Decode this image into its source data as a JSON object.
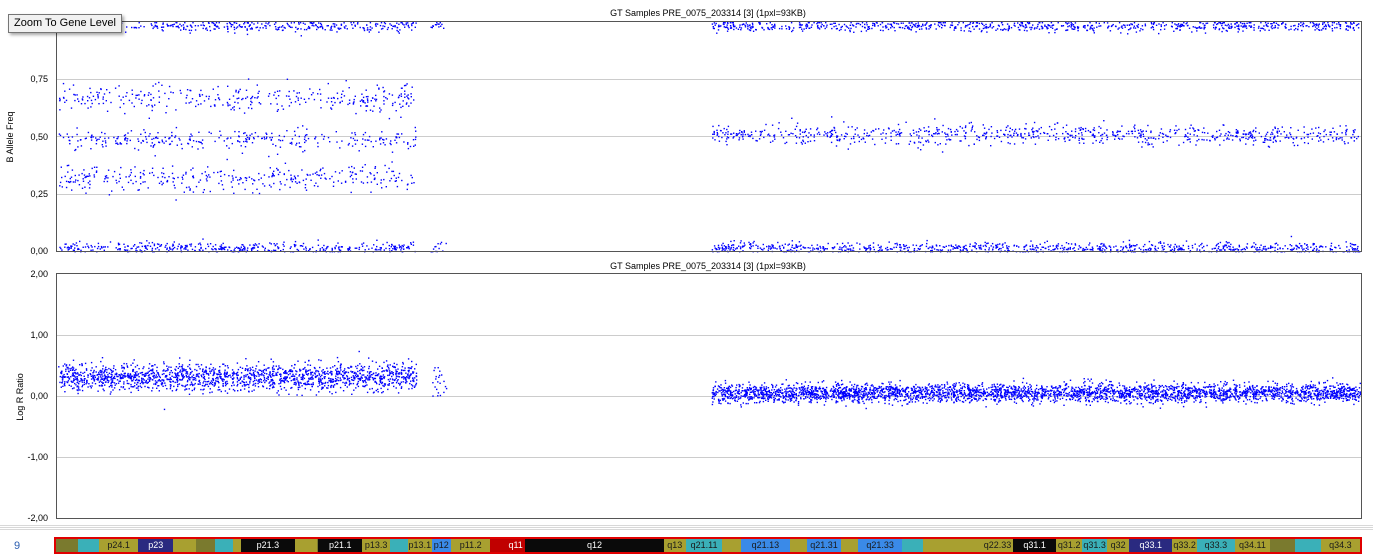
{
  "tooltip": {
    "label": "Zoom To Gene Level"
  },
  "chromosome": {
    "number": "9"
  },
  "colors": {
    "points": "#0000ff",
    "grid": "#cccccc",
    "ideogram_border": "#e00000"
  },
  "chart_data": [
    {
      "type": "scatter",
      "title": "GT Samples PRE_0075_203314 [3]  (1pxl=93KB)",
      "ylabel": "B Allele Freq",
      "ylim": [
        0,
        1
      ],
      "yticks": [
        "0,00",
        "0,25",
        "0,50",
        "0,75"
      ],
      "grid": true,
      "x_range_fraction": [
        0,
        1
      ],
      "clusters": [
        {
          "x": [
            0.0,
            0.275
          ],
          "y": 0.985,
          "spread": 0.012,
          "count": 380
        },
        {
          "x": [
            0.0,
            0.275
          ],
          "y": 0.67,
          "spread": 0.03,
          "count": 340
        },
        {
          "x": [
            0.0,
            0.275
          ],
          "y": 0.49,
          "spread": 0.022,
          "count": 300
        },
        {
          "x": [
            0.0,
            0.275
          ],
          "y": 0.32,
          "spread": 0.03,
          "count": 340
        },
        {
          "x": [
            0.0,
            0.275
          ],
          "y": 0.015,
          "spread": 0.012,
          "count": 420
        },
        {
          "x": [
            0.286,
            0.298
          ],
          "y": 0.985,
          "spread": 0.012,
          "count": 14
        },
        {
          "x": [
            0.286,
            0.298
          ],
          "y": 0.015,
          "spread": 0.015,
          "count": 14
        },
        {
          "x": [
            0.502,
            1.0
          ],
          "y": 0.985,
          "spread": 0.012,
          "count": 820
        },
        {
          "x": [
            0.502,
            1.0
          ],
          "y": 0.51,
          "spread": 0.022,
          "count": 820
        },
        {
          "x": [
            0.502,
            1.0
          ],
          "y": 0.015,
          "spread": 0.012,
          "count": 880
        }
      ]
    },
    {
      "type": "scatter",
      "title": "GT Samples PRE_0075_203314 [3]  (1pxl=93KB)",
      "ylabel": "Log R Ratio",
      "ylim": [
        -2,
        2
      ],
      "yticks": [
        "-2,00",
        "-1,00",
        "0,00",
        "1,00",
        "2,00"
      ],
      "grid": true,
      "clusters": [
        {
          "x": [
            0.0,
            0.275
          ],
          "y": 0.32,
          "spread": 0.11,
          "count": 1700
        },
        {
          "x": [
            0.286,
            0.298
          ],
          "y": 0.22,
          "spread": 0.15,
          "count": 22
        },
        {
          "x": [
            0.502,
            1.0
          ],
          "y": 0.06,
          "spread": 0.075,
          "count": 3400
        }
      ]
    }
  ],
  "ideogram": {
    "bands": [
      {
        "label": "",
        "start": 0.0,
        "end": 0.017,
        "color": "#7a7a2e"
      },
      {
        "label": "",
        "start": 0.017,
        "end": 0.033,
        "color": "#3ab0b8"
      },
      {
        "label": "p24.1",
        "start": 0.033,
        "end": 0.063,
        "color": "#a8a030"
      },
      {
        "label": "p23",
        "start": 0.063,
        "end": 0.09,
        "color": "#2a2a80"
      },
      {
        "label": "",
        "start": 0.09,
        "end": 0.107,
        "color": "#a8a030"
      },
      {
        "label": "",
        "start": 0.107,
        "end": 0.122,
        "color": "#7a7a2e"
      },
      {
        "label": "",
        "start": 0.122,
        "end": 0.136,
        "color": "#3ab0b8"
      },
      {
        "label": "",
        "start": 0.136,
        "end": 0.142,
        "color": "#a8a030"
      },
      {
        "label": "p21.3",
        "start": 0.142,
        "end": 0.183,
        "color": "#0a0a0a"
      },
      {
        "label": "",
        "start": 0.183,
        "end": 0.2,
        "color": "#a8a030"
      },
      {
        "label": "",
        "start": 0.2,
        "end": 0.201,
        "color": "#7a7a2e"
      },
      {
        "label": "p21.1",
        "start": 0.201,
        "end": 0.235,
        "color": "#0a0a0a"
      },
      {
        "label": "p13.3",
        "start": 0.235,
        "end": 0.256,
        "color": "#a8a030"
      },
      {
        "label": "",
        "start": 0.256,
        "end": 0.27,
        "color": "#3ab0b8"
      },
      {
        "label": "p13.1",
        "start": 0.27,
        "end": 0.288,
        "color": "#a8a030"
      },
      {
        "label": "p12",
        "start": 0.288,
        "end": 0.303,
        "color": "#3a8ae8"
      },
      {
        "label": "p11.2",
        "start": 0.303,
        "end": 0.333,
        "color": "#a8a030"
      },
      {
        "label": "",
        "start": 0.333,
        "end": 0.345,
        "color": "#c00000"
      },
      {
        "label": "q11",
        "start": 0.345,
        "end": 0.36,
        "color": "#c00000"
      },
      {
        "label": "q12",
        "start": 0.36,
        "end": 0.466,
        "color": "#0a0a0a"
      },
      {
        "label": "q13",
        "start": 0.466,
        "end": 0.483,
        "color": "#a8a030"
      },
      {
        "label": "q21.11",
        "start": 0.483,
        "end": 0.511,
        "color": "#3ab0b8"
      },
      {
        "label": "",
        "start": 0.511,
        "end": 0.525,
        "color": "#a8a030"
      },
      {
        "label": "q21.13",
        "start": 0.525,
        "end": 0.563,
        "color": "#3a8ae8"
      },
      {
        "label": "",
        "start": 0.563,
        "end": 0.576,
        "color": "#a8a030"
      },
      {
        "label": "q21.31",
        "start": 0.576,
        "end": 0.602,
        "color": "#3a8ae8"
      },
      {
        "label": "",
        "start": 0.602,
        "end": 0.615,
        "color": "#a8a030"
      },
      {
        "label": "q21.33",
        "start": 0.615,
        "end": 0.649,
        "color": "#3a8ae8"
      },
      {
        "label": "",
        "start": 0.649,
        "end": 0.665,
        "color": "#3ab0b8"
      },
      {
        "label": "",
        "start": 0.665,
        "end": 0.71,
        "color": "#a8a030"
      },
      {
        "label": "q22.33",
        "start": 0.71,
        "end": 0.734,
        "color": "#a8a030"
      },
      {
        "label": "q31.1",
        "start": 0.734,
        "end": 0.767,
        "color": "#0a0a0a"
      },
      {
        "label": "q31.2",
        "start": 0.767,
        "end": 0.787,
        "color": "#a8a030"
      },
      {
        "label": "q31.3",
        "start": 0.787,
        "end": 0.806,
        "color": "#3ab0b8"
      },
      {
        "label": "q32",
        "start": 0.806,
        "end": 0.823,
        "color": "#a8a030"
      },
      {
        "label": "q33.1",
        "start": 0.823,
        "end": 0.856,
        "color": "#2a2a80"
      },
      {
        "label": "q33.2",
        "start": 0.856,
        "end": 0.875,
        "color": "#a8a030"
      },
      {
        "label": "q33.3",
        "start": 0.875,
        "end": 0.904,
        "color": "#3ab0b8"
      },
      {
        "label": "q34.11",
        "start": 0.904,
        "end": 0.931,
        "color": "#a8a030"
      },
      {
        "label": "",
        "start": 0.931,
        "end": 0.95,
        "color": "#7a7a2e"
      },
      {
        "label": "",
        "start": 0.95,
        "end": 0.97,
        "color": "#3ab0b8"
      },
      {
        "label": "q34.3",
        "start": 0.97,
        "end": 1.0,
        "color": "#a8a030"
      }
    ]
  }
}
